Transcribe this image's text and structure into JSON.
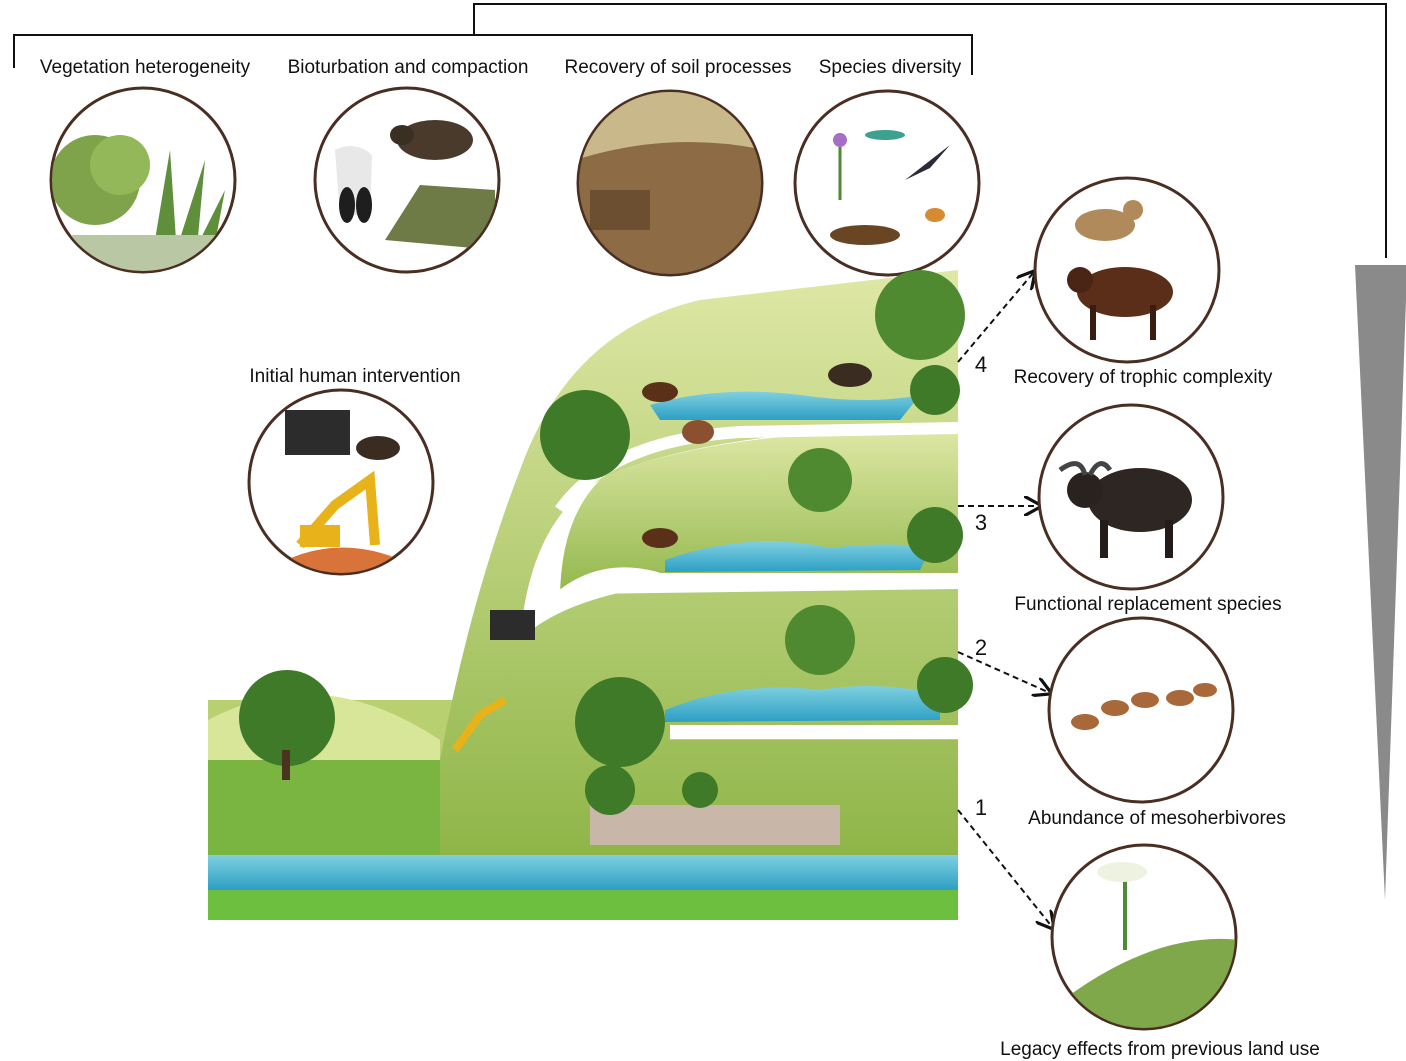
{
  "top_labels": [
    "Vegetation heterogeneity",
    "Bioturbation and compaction",
    "Recovery of soil processes",
    "Species diversity"
  ],
  "intervention": "Initial human intervention",
  "stages": [
    {
      "number": 1,
      "label": "Legacy effects from previous land use"
    },
    {
      "number": 2,
      "label": "Abundance of mesoherbivores"
    },
    {
      "number": 3,
      "label": "Functional replacement species"
    },
    {
      "number": 4,
      "label": "Recovery of trophic complexity"
    }
  ]
}
